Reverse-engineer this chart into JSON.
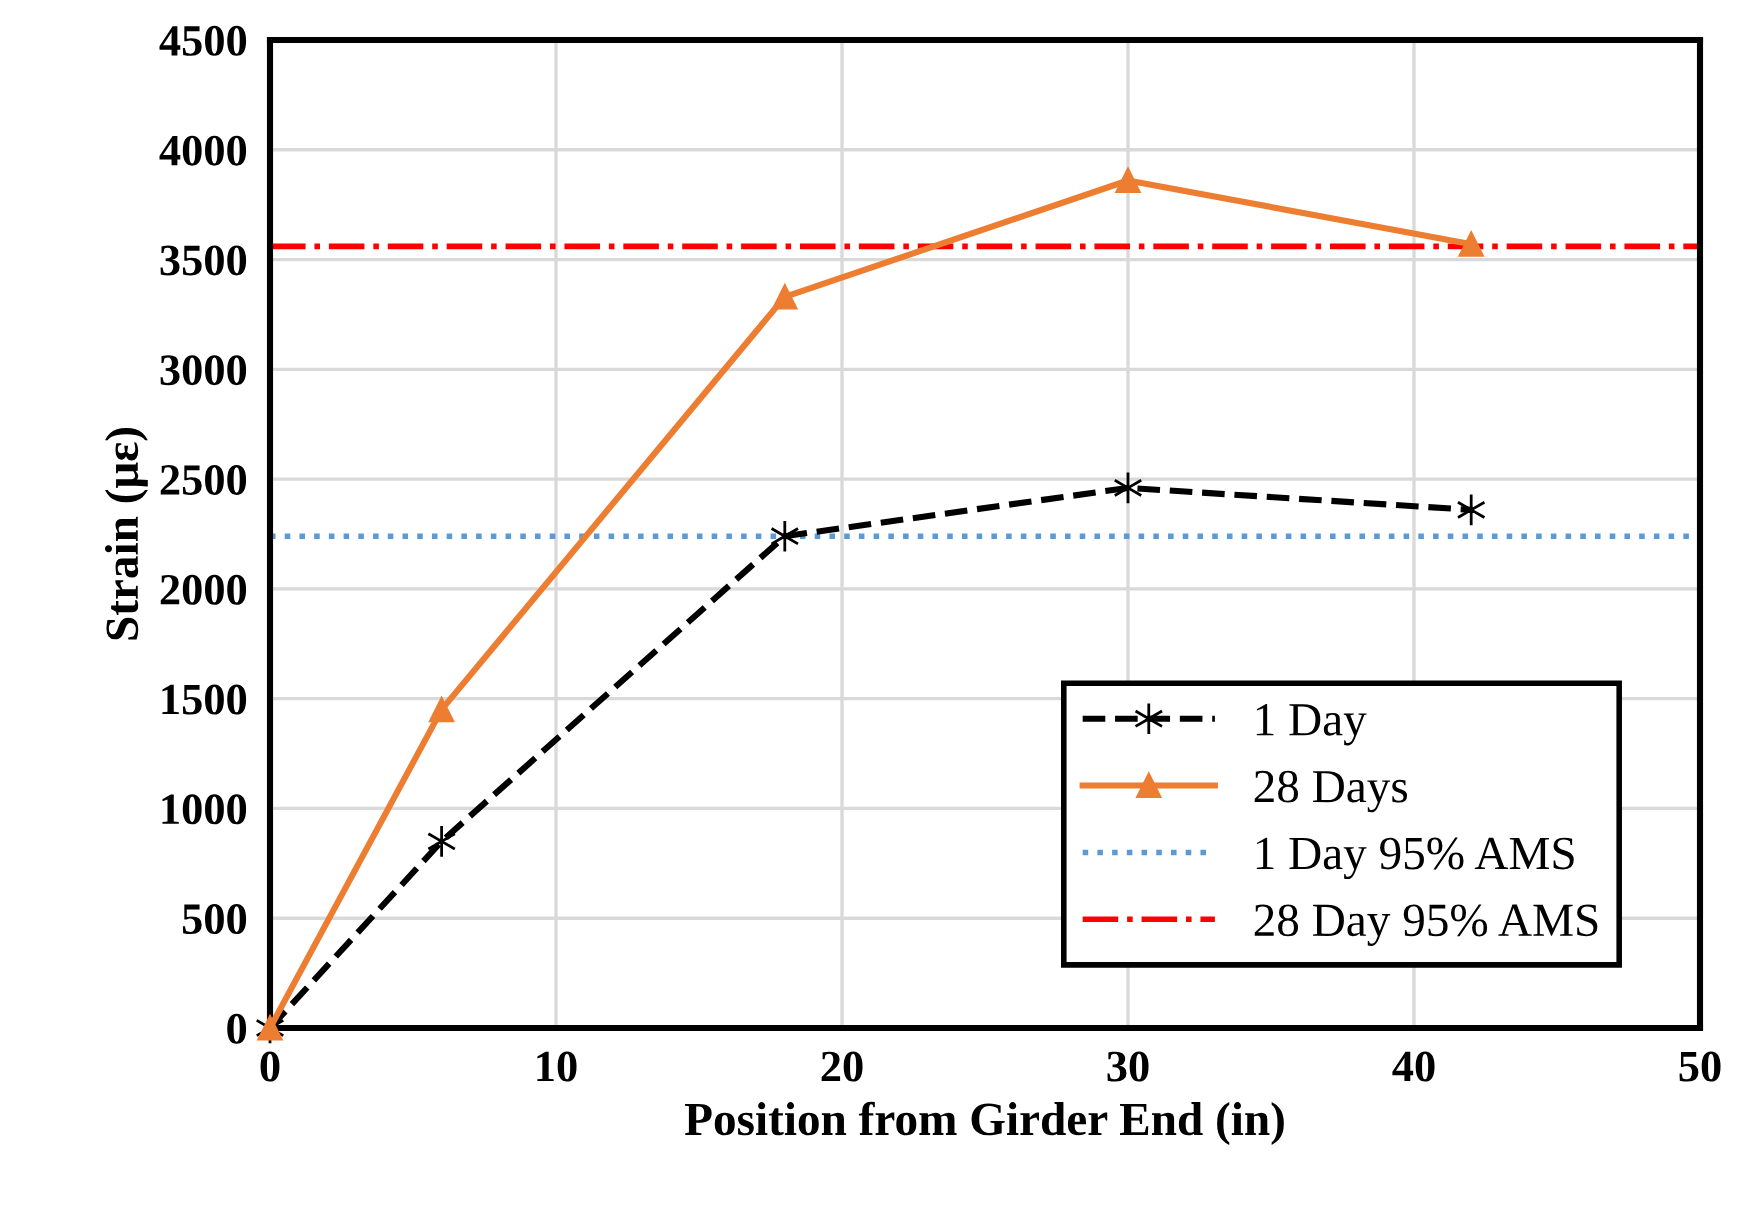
{
  "chart_data": {
    "type": "line",
    "xlabel": "Position from Girder End (in)",
    "ylabel": "Strain (με)",
    "x": [
      0,
      6,
      18,
      30,
      42
    ],
    "series": [
      {
        "name": "1 Day",
        "color": "#000000",
        "values": [
          0,
          850,
          2240,
          2460,
          2360
        ],
        "marker": "cross",
        "line_style": "dashed"
      },
      {
        "name": "28 Days",
        "color": "#ed7d31",
        "values": [
          0,
          1450,
          3330,
          3860,
          3570
        ],
        "marker": "triangle",
        "line_style": "solid"
      }
    ],
    "ref_lines": [
      {
        "axis": "y",
        "value": 2240,
        "label": "1 Day 95% AMS",
        "color": "#5b9bd5",
        "line_style": "dotted"
      },
      {
        "axis": "y",
        "value": 3560,
        "label": "28 Day 95% AMS",
        "color": "#ff0000",
        "line_style": "dashdot"
      }
    ],
    "xlim": [
      0,
      50
    ],
    "xticks": [
      0,
      10,
      20,
      30,
      40,
      50
    ],
    "ylim": [
      0,
      4500
    ],
    "yticks": [
      0,
      500,
      1000,
      1500,
      2000,
      2500,
      3000,
      3500,
      4000,
      4500
    ],
    "grid": true,
    "legend": "bottom right"
  }
}
